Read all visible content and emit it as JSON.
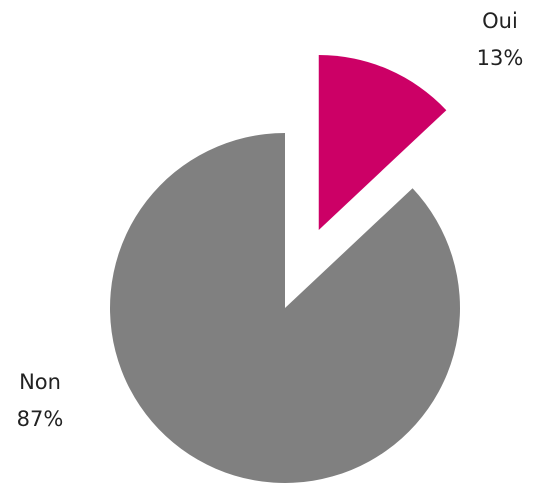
{
  "chart_data": {
    "type": "pie",
    "categories": [
      "Oui",
      "Non"
    ],
    "values": [
      13,
      87
    ],
    "value_labels": [
      "13%",
      "87%"
    ],
    "colors": [
      "#cc0066",
      "#808080"
    ],
    "exploded": [
      true,
      false
    ]
  }
}
